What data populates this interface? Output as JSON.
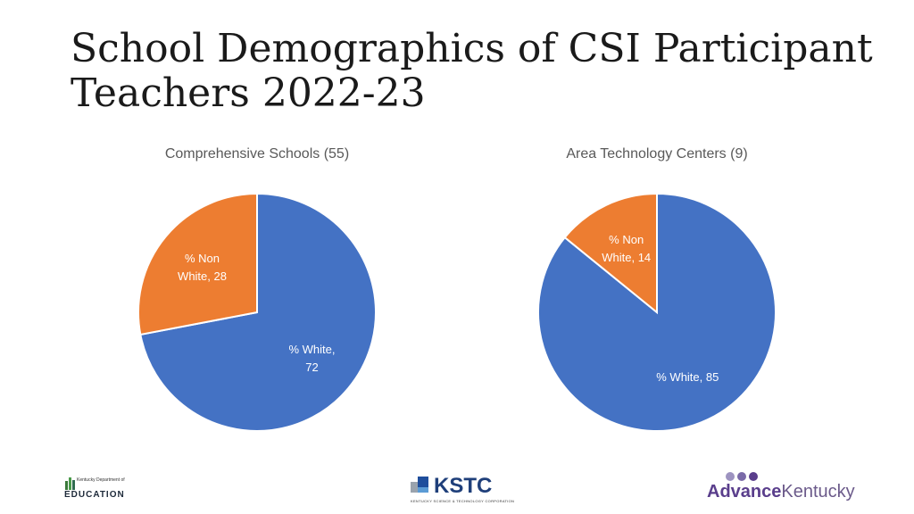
{
  "title": "School Demographics of CSI Participant Teachers 2022-23",
  "chart_data": [
    {
      "type": "pie",
      "title": "Comprehensive Schools (55)",
      "slices": [
        {
          "label_lines": [
            "% White,",
            "72"
          ],
          "value": 72,
          "color": "#4472c4"
        },
        {
          "label_lines": [
            "% Non",
            "White, 28"
          ],
          "value": 28,
          "color": "#ed7d31"
        }
      ]
    },
    {
      "type": "pie",
      "title": "Area Technology Centers (9)",
      "slices": [
        {
          "label_lines": [
            "% White, 85"
          ],
          "value": 85,
          "color": "#4472c4"
        },
        {
          "label_lines": [
            "% Non",
            "White, 14"
          ],
          "value": 14,
          "color": "#ed7d31"
        }
      ]
    }
  ],
  "footer": {
    "kde_small": "Kentucky Department of",
    "kde_big": "EDUCATION",
    "kstc_name": "KSTC",
    "kstc_sub": "KENTUCKY SCIENCE & TECHNOLOGY CORPORATION",
    "advance_bold": "Advance",
    "advance_rest": "Kentucky"
  }
}
